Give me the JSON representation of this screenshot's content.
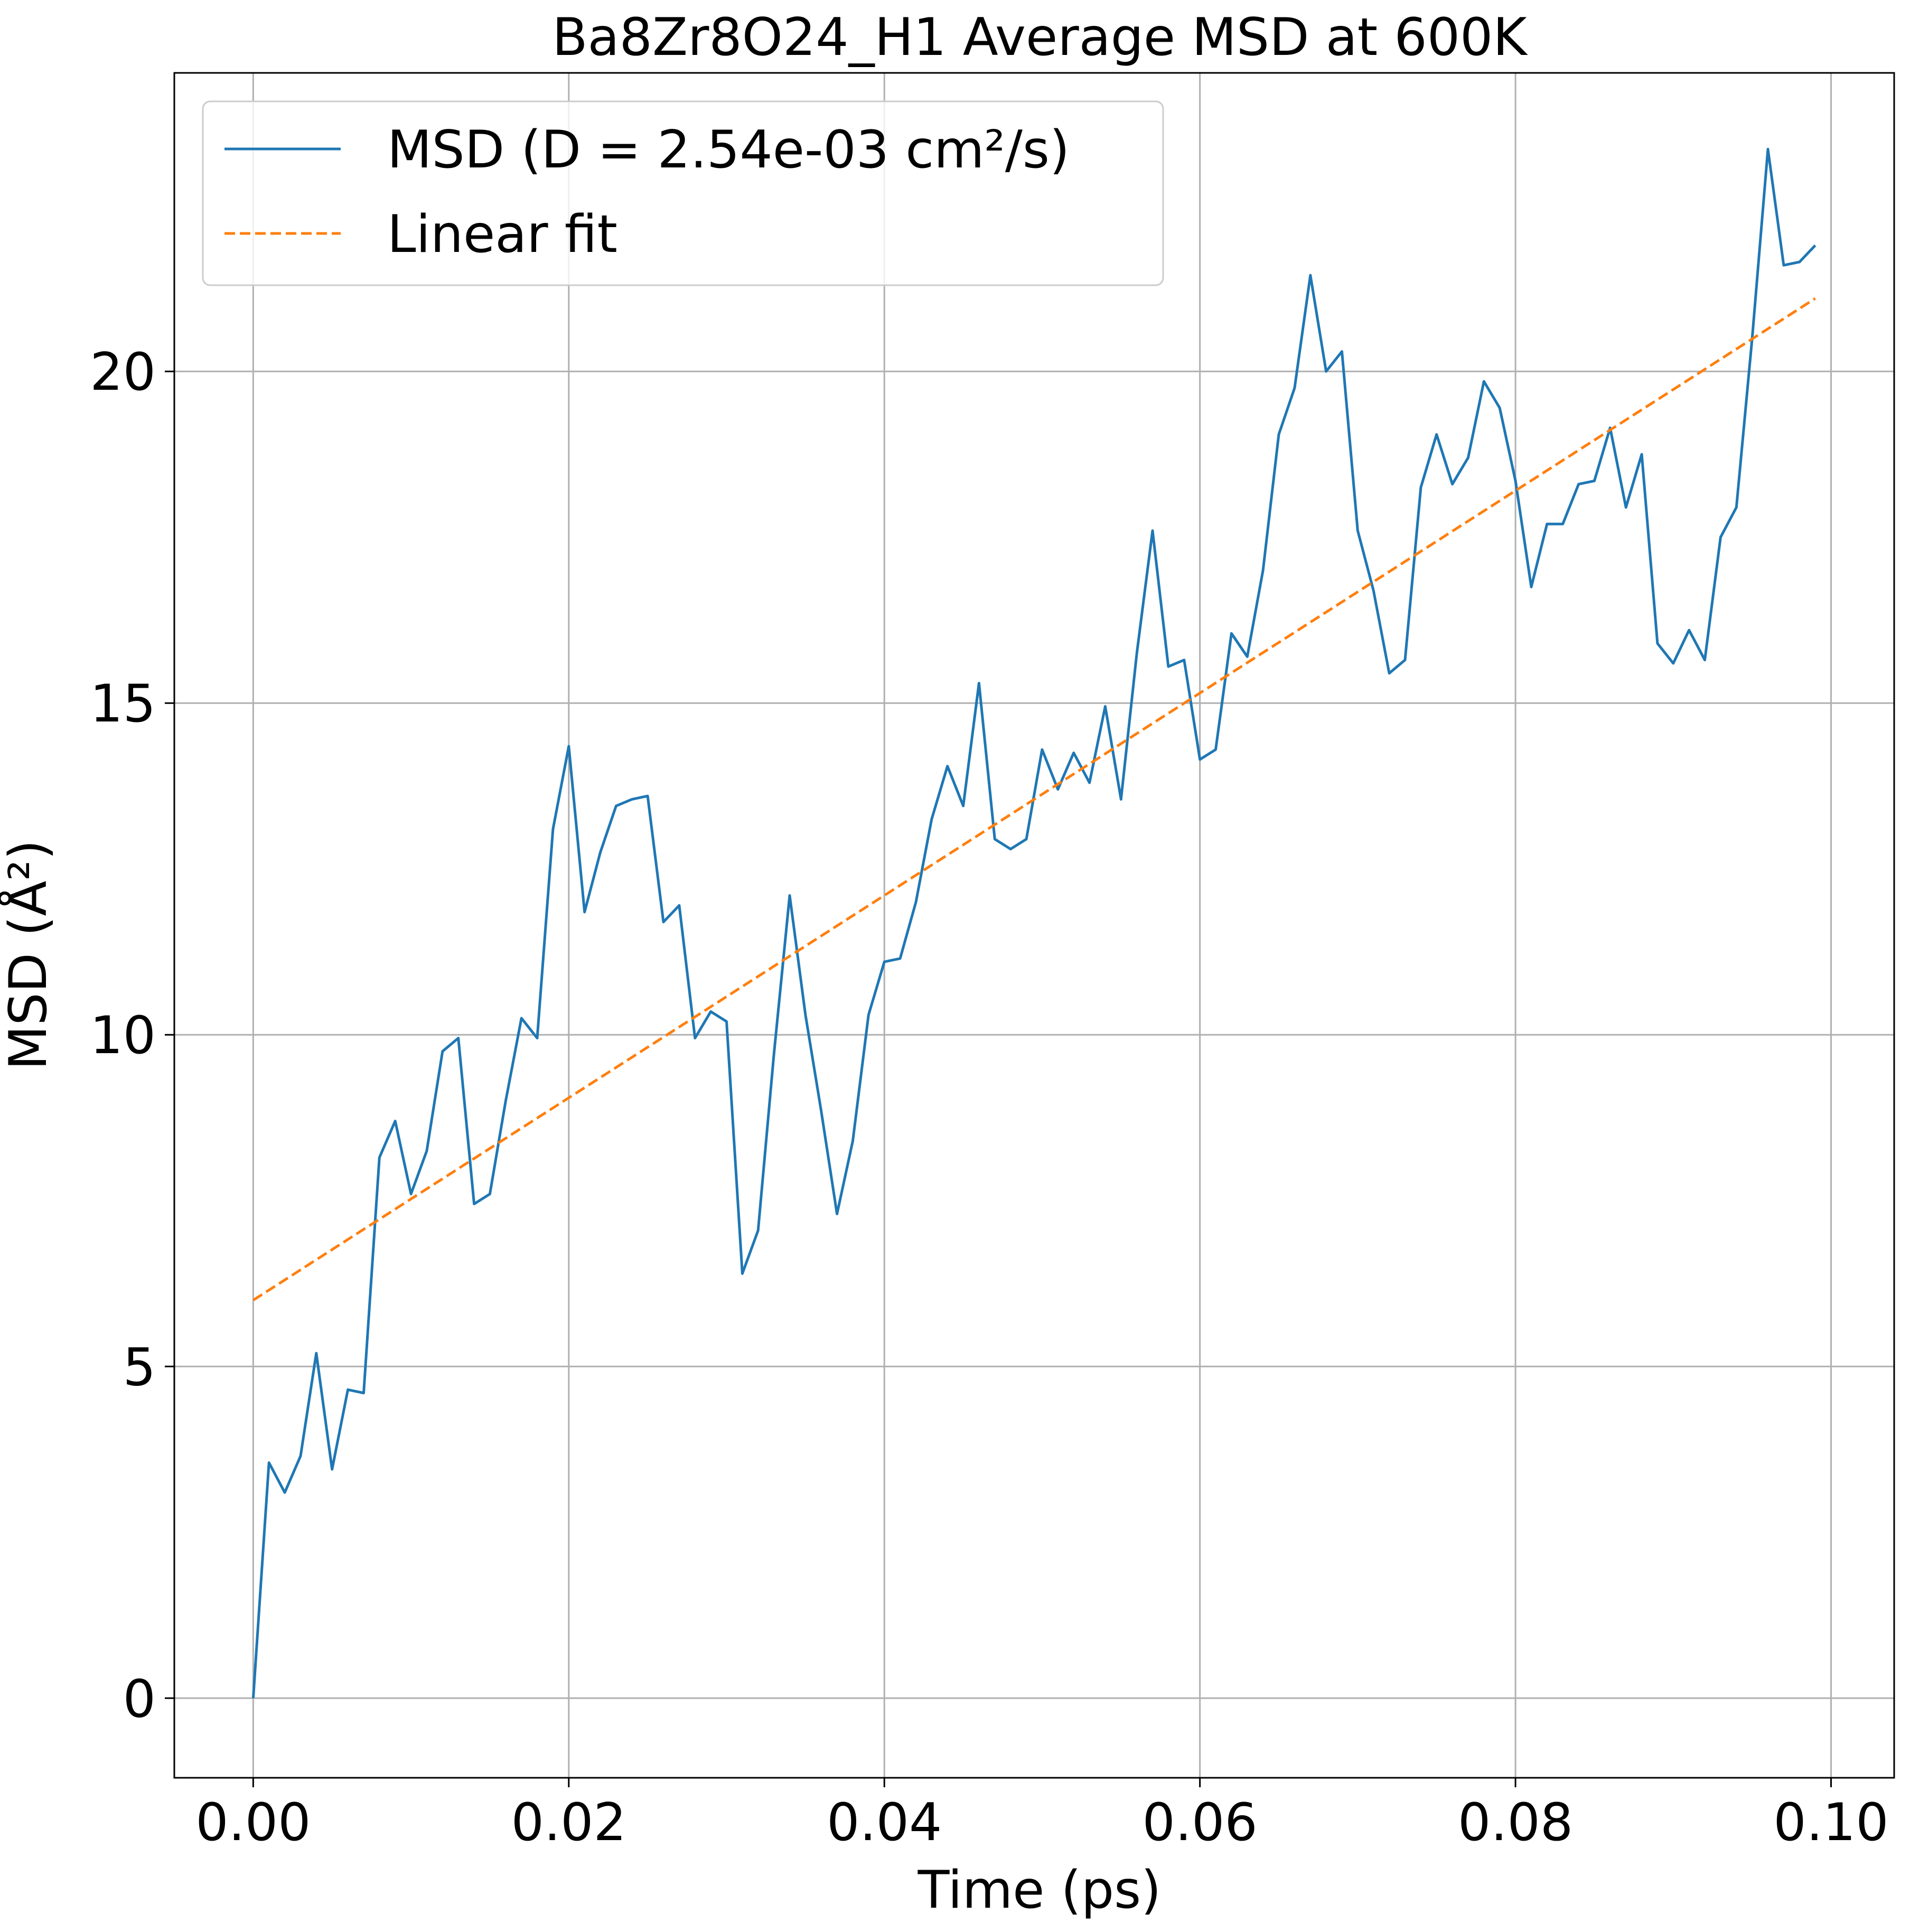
{
  "chart_data": {
    "type": "line",
    "title": "Ba8Zr8O24_H1 Average MSD at 600K",
    "xlabel": "Time (ps)",
    "ylabel": "MSD (Å²)",
    "xlim": [
      -0.005,
      0.104
    ],
    "ylim": [
      -1.2,
      24.5
    ],
    "xticks": [
      "0.00",
      "0.02",
      "0.04",
      "0.06",
      "0.08",
      "0.10"
    ],
    "xtick_values": [
      0.0,
      0.02,
      0.04,
      0.06,
      0.08,
      0.1
    ],
    "yticks": [
      "0",
      "5",
      "10",
      "15",
      "20"
    ],
    "ytick_values": [
      0,
      5,
      10,
      15,
      20
    ],
    "grid": true,
    "legend_position": "top-left",
    "series": [
      {
        "name": "MSD (D = 2.54e-03 cm²/s)",
        "color": "#1f77b4",
        "style": "solid",
        "x": [
          0.0,
          0.001,
          0.002,
          0.003,
          0.004,
          0.005,
          0.006,
          0.007,
          0.008,
          0.009,
          0.01,
          0.011,
          0.012,
          0.013,
          0.014,
          0.015,
          0.016,
          0.017,
          0.018,
          0.019,
          0.02,
          0.021,
          0.022,
          0.023,
          0.024,
          0.025,
          0.026,
          0.027,
          0.028,
          0.029,
          0.03,
          0.031,
          0.032,
          0.033,
          0.034,
          0.035,
          0.036,
          0.037,
          0.038,
          0.039,
          0.04,
          0.041,
          0.042,
          0.043,
          0.044,
          0.045,
          0.046,
          0.047,
          0.048,
          0.049,
          0.05,
          0.051,
          0.052,
          0.053,
          0.054,
          0.055,
          0.056,
          0.057,
          0.058,
          0.059,
          0.06,
          0.061,
          0.062,
          0.063,
          0.064,
          0.065,
          0.066,
          0.067,
          0.068,
          0.069,
          0.07,
          0.071,
          0.072,
          0.073,
          0.074,
          0.075,
          0.076,
          0.077,
          0.078,
          0.079,
          0.08,
          0.081,
          0.082,
          0.083,
          0.084,
          0.085,
          0.086,
          0.087,
          0.088,
          0.089,
          0.09,
          0.091,
          0.092,
          0.093,
          0.094,
          0.095,
          0.096,
          0.097,
          0.098,
          0.099
        ],
        "values": [
          0.0,
          3.55,
          3.1,
          3.65,
          5.2,
          3.45,
          4.65,
          4.6,
          8.15,
          8.7,
          7.6,
          8.25,
          9.75,
          9.95,
          7.45,
          7.6,
          9.0,
          10.25,
          9.95,
          13.1,
          14.35,
          11.85,
          12.75,
          13.45,
          13.55,
          13.6,
          11.7,
          11.95,
          9.95,
          10.35,
          10.2,
          6.4,
          7.05,
          9.7,
          12.1,
          10.3,
          8.85,
          7.3,
          8.4,
          10.3,
          11.1,
          11.15,
          12.0,
          13.25,
          14.05,
          13.45,
          15.3,
          12.95,
          12.8,
          12.95,
          14.3,
          13.7,
          14.25,
          13.8,
          14.95,
          13.55,
          15.75,
          17.6,
          15.55,
          15.65,
          14.15,
          14.3,
          16.05,
          15.7,
          17.0,
          19.05,
          19.75,
          21.45,
          20.0,
          20.3,
          17.6,
          16.7,
          15.45,
          15.65,
          18.25,
          19.05,
          18.3,
          18.7,
          19.85,
          19.45,
          18.35,
          16.75,
          17.7,
          17.7,
          18.3,
          18.35,
          19.15,
          17.95,
          18.75,
          15.9,
          15.6,
          16.1,
          15.65,
          17.5,
          17.95,
          20.5,
          23.35,
          21.6,
          21.65,
          21.9
        ]
      },
      {
        "name": "Linear fit",
        "color": "#ff7f0e",
        "style": "dashed",
        "x": [
          0.0,
          0.099
        ],
        "values": [
          6.0,
          21.1
        ]
      }
    ]
  }
}
